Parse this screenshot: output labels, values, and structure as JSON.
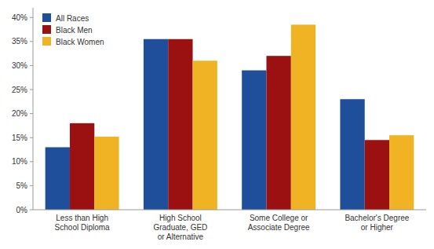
{
  "chart_data": {
    "type": "bar",
    "categories": [
      "Less than High\nSchool Diploma",
      "High School\nGraduate, GED\nor Alternative",
      "Some College or\nAssociate Degree",
      "Bachelor's Degree\nor Higher"
    ],
    "series": [
      {
        "name": "All Races",
        "color": "#1F4E9B",
        "values": [
          13.0,
          35.5,
          29.0,
          23.0
        ]
      },
      {
        "name": "Black Men",
        "color": "#9B1111",
        "values": [
          18.0,
          35.5,
          32.0,
          14.5
        ]
      },
      {
        "name": "Black Women",
        "color": "#F0B323",
        "values": [
          15.2,
          31.0,
          38.5,
          15.5
        ]
      }
    ],
    "ylim": [
      0,
      42
    ],
    "yticks": [
      {
        "value": 0,
        "label": "0%"
      },
      {
        "value": 5,
        "label": "5%"
      },
      {
        "value": 10,
        "label": "10%"
      },
      {
        "value": 15,
        "label": "15%"
      },
      {
        "value": 20,
        "label": "20%"
      },
      {
        "value": 25,
        "label": "25%"
      },
      {
        "value": 30,
        "label": "30%"
      },
      {
        "value": 35,
        "label": "35%"
      },
      {
        "value": 40,
        "label": "40%"
      }
    ],
    "grid": false,
    "legend": "upper left"
  }
}
